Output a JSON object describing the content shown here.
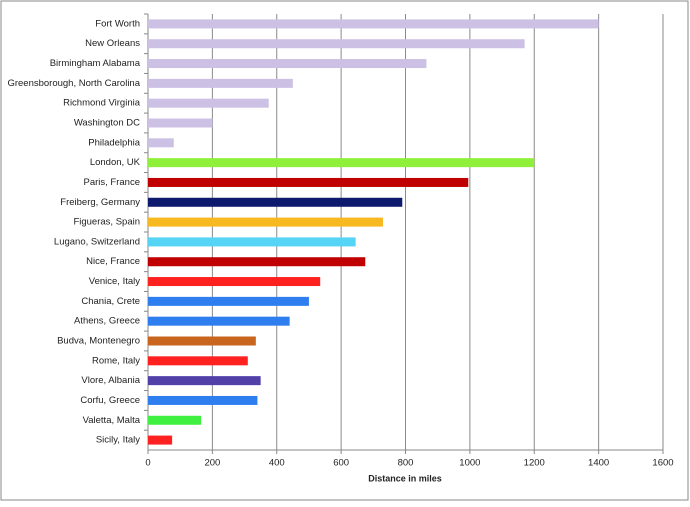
{
  "chart_data": {
    "type": "bar",
    "orientation": "horizontal",
    "x_label": "Distance in miles",
    "categories": [
      "Fort Worth",
      "New Orleans",
      "Birmingham Alabama",
      "Greensborough, North Carolina",
      "Richmond Virginia",
      "Washington DC",
      "Philadelphia",
      "London, UK",
      "Paris, France",
      "Freiberg, Germany",
      "Figueras, Spain",
      "Lugano, Switzerland",
      "Nice, France",
      "Venice, Italy",
      "Chania, Crete",
      "Athens, Greece",
      "Budva, Montenegro",
      "Rome, Italy",
      "Vlore, Albania",
      "Corfu, Greece",
      "Valetta, Malta",
      "Sicily, Italy"
    ],
    "values": [
      1400,
      1170,
      865,
      450,
      375,
      200,
      80,
      1200,
      995,
      790,
      730,
      645,
      675,
      535,
      500,
      440,
      335,
      310,
      350,
      340,
      165,
      75
    ],
    "colors": [
      "#ccc0e4",
      "#ccc0e4",
      "#ccc0e4",
      "#ccc0e4",
      "#ccc0e4",
      "#ccc0e4",
      "#ccc0e4",
      "#8ff03a",
      "#c00000",
      "#0d1a6e",
      "#f8b820",
      "#55d4f5",
      "#c00000",
      "#ff2020",
      "#2f7ef0",
      "#2f7ef0",
      "#c8651e",
      "#ff2020",
      "#5040a8",
      "#2f7ef0",
      "#40f040",
      "#ff2020"
    ],
    "xlim": [
      0,
      1600
    ],
    "xticks": [
      0,
      200,
      400,
      600,
      800,
      1000,
      1200,
      1400,
      1600
    ],
    "grid": true
  }
}
